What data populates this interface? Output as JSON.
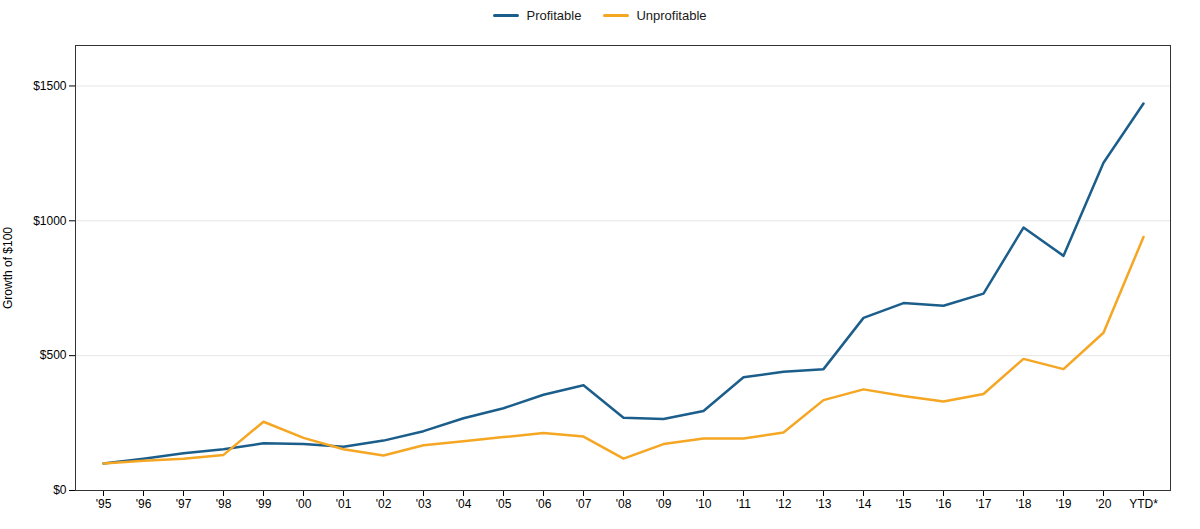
{
  "chart_data": {
    "type": "line",
    "categories": [
      "'95",
      "'96",
      "'97",
      "'98",
      "'99",
      "'00",
      "'01",
      "'02",
      "'03",
      "'04",
      "'05",
      "'06",
      "'07",
      "'08",
      "'09",
      "'10",
      "'11",
      "'12",
      "'13",
      "'14",
      "'15",
      "'16",
      "'17",
      "'18",
      "'19",
      "'20",
      "YTD*"
    ],
    "series": [
      {
        "name": "Profitable",
        "color": "#1B5E8B",
        "values": [
          100,
          118,
          138,
          153,
          175,
          172,
          162,
          185,
          220,
          268,
          305,
          355,
          390,
          270,
          265,
          295,
          420,
          440,
          450,
          640,
          695,
          685,
          730,
          975,
          870,
          1215,
          1435
        ]
      },
      {
        "name": "Unprofitable",
        "color": "#F5A623",
        "values": [
          100,
          110,
          118,
          132,
          255,
          195,
          153,
          130,
          168,
          183,
          198,
          213,
          200,
          118,
          172,
          193,
          193,
          215,
          335,
          375,
          350,
          330,
          358,
          488,
          450,
          585,
          940
        ]
      }
    ],
    "ylabel": "Growth of $100",
    "ylim": [
      0,
      1650
    ],
    "yticks": [
      {
        "value": 0,
        "label": "$0"
      },
      {
        "value": 500,
        "label": "$500"
      },
      {
        "value": 1000,
        "label": "$1000"
      },
      {
        "value": 1500,
        "label": "$1500"
      }
    ],
    "grid": true,
    "legend": "upper center"
  }
}
